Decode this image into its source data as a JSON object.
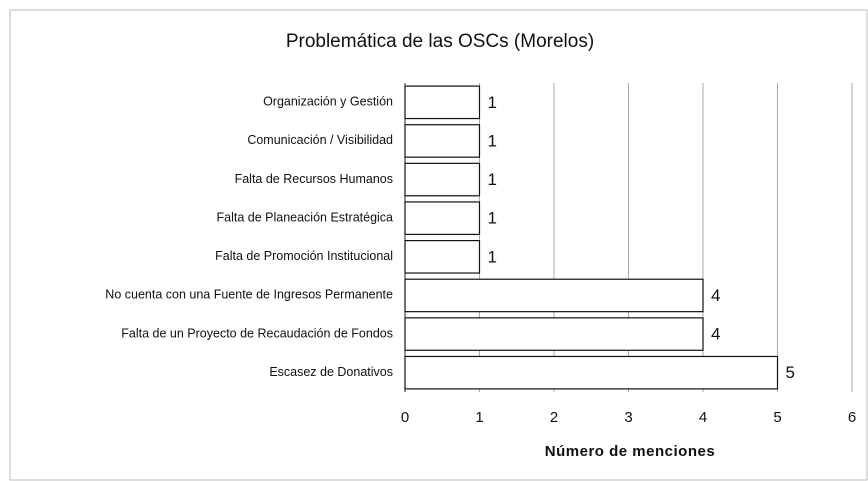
{
  "chart_data": {
    "type": "bar",
    "orientation": "horizontal",
    "title": "Problemática de las OSCs (Morelos)",
    "x_label": "Número de menciones",
    "categories": [
      "Organización y Gestión",
      "Comunicación / Visibilidad",
      "Falta de Recursos Humanos",
      "Falta de Planeación Estratégica",
      "Falta de Promoción Institucional",
      "No cuenta con una Fuente de Ingresos Permanente",
      "Falta de un Proyecto de Recaudación de Fondos",
      "Escasez de Donativos"
    ],
    "values": [
      1,
      1,
      1,
      1,
      1,
      4,
      4,
      5
    ],
    "color": "#ffffff",
    "xlim": [
      0,
      6
    ],
    "xticks": [
      0,
      1,
      2,
      3,
      4,
      5,
      6
    ],
    "grid": true
  }
}
